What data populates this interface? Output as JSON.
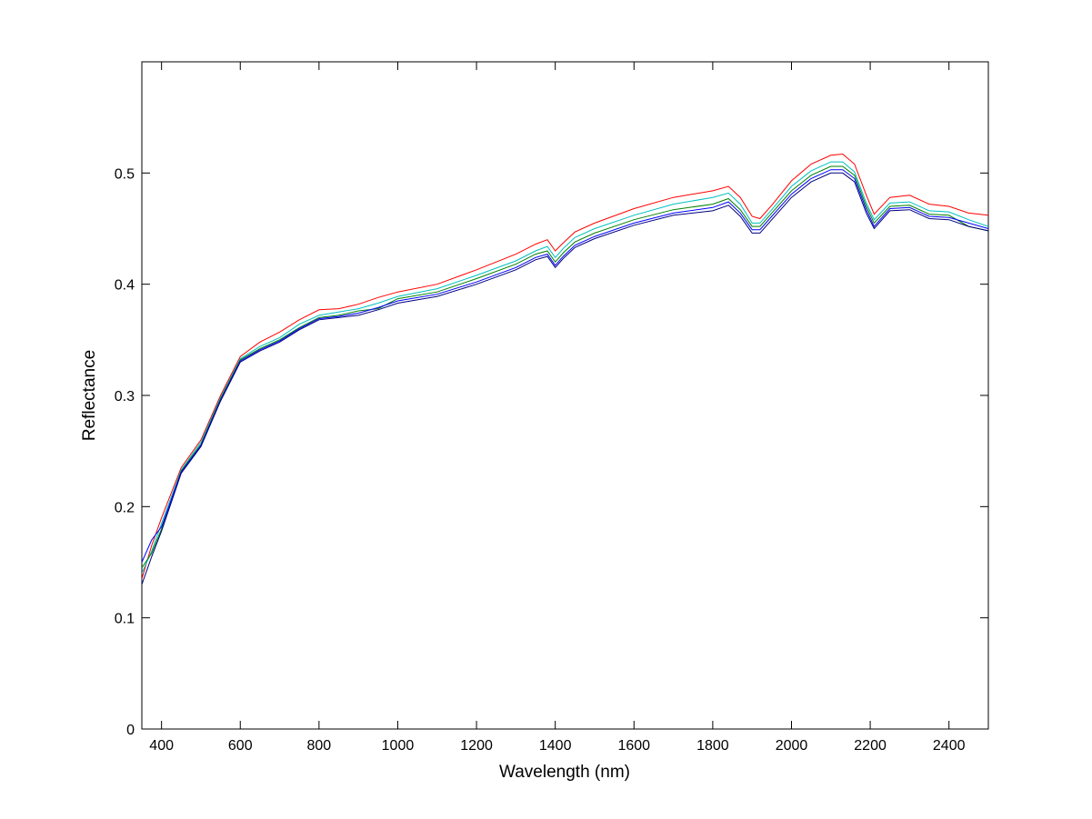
{
  "chart_data": {
    "type": "line",
    "title": "",
    "xlabel": "Wavelength (nm)",
    "ylabel": "Reflectance",
    "xlim": [
      350,
      2500
    ],
    "ylim": [
      0,
      0.6
    ],
    "x_ticks": [
      400,
      600,
      800,
      1000,
      1200,
      1400,
      1600,
      1800,
      2000,
      2200,
      2400
    ],
    "y_ticks": [
      0,
      0.1,
      0.2,
      0.3,
      0.4,
      0.5
    ],
    "x_tick_labels": [
      "400",
      "600",
      "800",
      "1000",
      "1200",
      "1400",
      "1600",
      "1800",
      "2000",
      "2200",
      "2400"
    ],
    "y_tick_labels": [
      "0",
      "0.1",
      "0.2",
      "0.3",
      "0.4",
      "0.5"
    ],
    "grid": false,
    "legend": "none",
    "x": [
      350,
      375,
      400,
      450,
      500,
      550,
      600,
      650,
      700,
      750,
      800,
      850,
      900,
      950,
      1000,
      1100,
      1200,
      1300,
      1350,
      1380,
      1400,
      1420,
      1450,
      1500,
      1600,
      1700,
      1800,
      1840,
      1870,
      1900,
      1920,
      1950,
      2000,
      2050,
      2100,
      2130,
      2160,
      2190,
      2210,
      2250,
      2300,
      2350,
      2400,
      2450,
      2500
    ],
    "series": [
      {
        "color": "#ff0000",
        "values": [
          0.135,
          0.165,
          0.19,
          0.235,
          0.26,
          0.3,
          0.335,
          0.348,
          0.357,
          0.368,
          0.377,
          0.378,
          0.382,
          0.388,
          0.393,
          0.4,
          0.413,
          0.427,
          0.436,
          0.44,
          0.43,
          0.437,
          0.447,
          0.455,
          0.468,
          0.478,
          0.484,
          0.488,
          0.478,
          0.461,
          0.459,
          0.471,
          0.493,
          0.508,
          0.516,
          0.517,
          0.508,
          0.48,
          0.463,
          0.478,
          0.48,
          0.472,
          0.47,
          0.464,
          0.462
        ]
      },
      {
        "color": "#00bfbf",
        "values": [
          0.14,
          0.16,
          0.185,
          0.233,
          0.258,
          0.298,
          0.333,
          0.344,
          0.352,
          0.364,
          0.372,
          0.375,
          0.378,
          0.383,
          0.389,
          0.396,
          0.408,
          0.421,
          0.43,
          0.434,
          0.424,
          0.432,
          0.442,
          0.45,
          0.462,
          0.472,
          0.478,
          0.482,
          0.472,
          0.455,
          0.455,
          0.467,
          0.488,
          0.502,
          0.51,
          0.51,
          0.501,
          0.473,
          0.458,
          0.473,
          0.474,
          0.466,
          0.465,
          0.458,
          0.452
        ]
      },
      {
        "color": "#008000",
        "values": [
          0.145,
          0.158,
          0.18,
          0.232,
          0.256,
          0.297,
          0.332,
          0.342,
          0.35,
          0.361,
          0.37,
          0.372,
          0.376,
          0.378,
          0.387,
          0.393,
          0.405,
          0.418,
          0.427,
          0.43,
          0.42,
          0.428,
          0.438,
          0.446,
          0.458,
          0.467,
          0.472,
          0.477,
          0.467,
          0.452,
          0.452,
          0.464,
          0.484,
          0.498,
          0.506,
          0.506,
          0.498,
          0.47,
          0.455,
          0.47,
          0.471,
          0.463,
          0.462,
          0.452,
          0.448
        ]
      },
      {
        "color": "#0000ff",
        "values": [
          0.15,
          0.17,
          0.182,
          0.231,
          0.255,
          0.296,
          0.331,
          0.341,
          0.349,
          0.36,
          0.369,
          0.371,
          0.374,
          0.379,
          0.385,
          0.391,
          0.402,
          0.415,
          0.424,
          0.427,
          0.417,
          0.425,
          0.435,
          0.443,
          0.455,
          0.464,
          0.469,
          0.474,
          0.464,
          0.449,
          0.449,
          0.461,
          0.481,
          0.495,
          0.503,
          0.503,
          0.495,
          0.467,
          0.452,
          0.468,
          0.469,
          0.461,
          0.46,
          0.455,
          0.45
        ]
      },
      {
        "color": "#000080",
        "values": [
          0.13,
          0.155,
          0.178,
          0.23,
          0.254,
          0.295,
          0.33,
          0.34,
          0.348,
          0.359,
          0.368,
          0.37,
          0.372,
          0.377,
          0.383,
          0.389,
          0.4,
          0.413,
          0.422,
          0.425,
          0.415,
          0.423,
          0.433,
          0.441,
          0.453,
          0.462,
          0.466,
          0.471,
          0.461,
          0.446,
          0.446,
          0.458,
          0.478,
          0.492,
          0.5,
          0.5,
          0.492,
          0.464,
          0.45,
          0.466,
          0.467,
          0.459,
          0.458,
          0.452,
          0.448
        ]
      }
    ]
  }
}
